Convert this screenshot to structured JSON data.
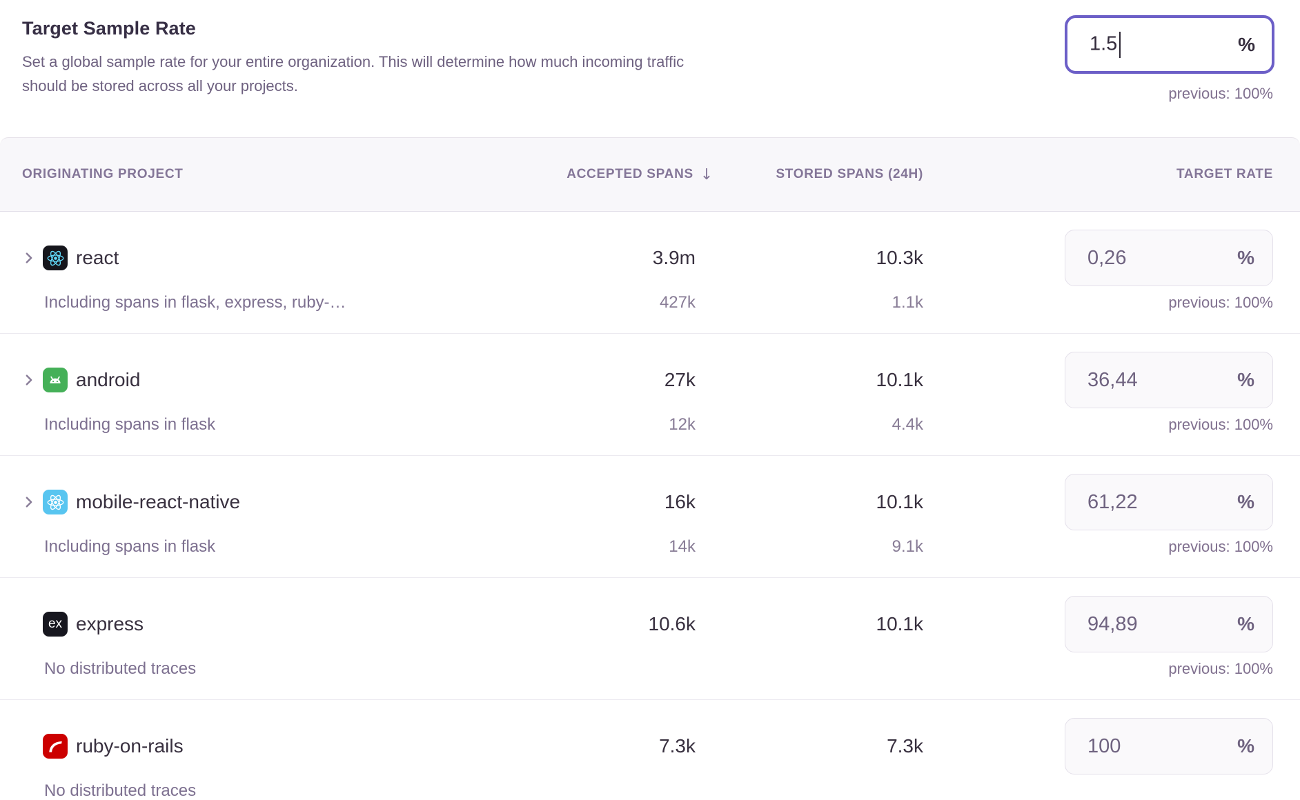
{
  "header": {
    "title": "Target Sample Rate",
    "description_lines": [
      "Set a global sample rate for your entire organization. This will determine how much incoming traffic",
      "should be stored across all your projects."
    ],
    "input": {
      "value": "1.5",
      "unit": "%",
      "previous": "previous: 100%"
    }
  },
  "table": {
    "columns": {
      "project": "ORIGINATING PROJECT",
      "accepted": "ACCEPTED SPANS",
      "accepted_sort_indicator": "↓",
      "stored": "STORED SPANS (24H)",
      "rate": "TARGET RATE"
    },
    "rows": [
      {
        "project": "react",
        "icon": "react-icon",
        "expandable": true,
        "accepted": "3.9m",
        "accepted_sub": "427k",
        "stored": "10.3k",
        "stored_sub": "1.1k",
        "rate": "0,26",
        "unit": "%",
        "previous": "previous: 100%",
        "sub_label": "Including spans in flask, express, ruby-…"
      },
      {
        "project": "android",
        "icon": "android-icon",
        "expandable": true,
        "accepted": "27k",
        "accepted_sub": "12k",
        "stored": "10.1k",
        "stored_sub": "4.4k",
        "rate": "36,44",
        "unit": "%",
        "previous": "previous: 100%",
        "sub_label": "Including spans in flask"
      },
      {
        "project": "mobile-react-native",
        "icon": "react-native-icon",
        "expandable": true,
        "accepted": "16k",
        "accepted_sub": "14k",
        "stored": "10.1k",
        "stored_sub": "9.1k",
        "rate": "61,22",
        "unit": "%",
        "previous": "previous: 100%",
        "sub_label": "Including spans in flask"
      },
      {
        "project": "express",
        "icon": "express-icon",
        "expandable": false,
        "accepted": "10.6k",
        "accepted_sub": "",
        "stored": "10.1k",
        "stored_sub": "",
        "rate": "94,89",
        "unit": "%",
        "previous": "previous: 100%",
        "sub_label": "No distributed traces"
      },
      {
        "project": "ruby-on-rails",
        "icon": "rails-icon",
        "expandable": false,
        "accepted": "7.3k",
        "accepted_sub": "",
        "stored": "7.3k",
        "stored_sub": "",
        "rate": "100",
        "unit": "%",
        "previous": "",
        "sub_label": "No distributed traces"
      }
    ]
  },
  "colors": {
    "accent_purple": "#6c5fc7",
    "muted_purple_gray": "#80708f",
    "dark_text": "#38303f",
    "row_input_border": "#e4e0ea",
    "row_input_bg": "#faf9fb",
    "header_band_bg": "#f8f7fa",
    "divider": "#eceaf0",
    "react_tile": "#16161c",
    "react_atom": "#61dafb",
    "android_tile": "#45b058",
    "react_native_tile": "#58c5f0",
    "express_tile": "#17171f",
    "rails_tile": "#cc0000"
  }
}
